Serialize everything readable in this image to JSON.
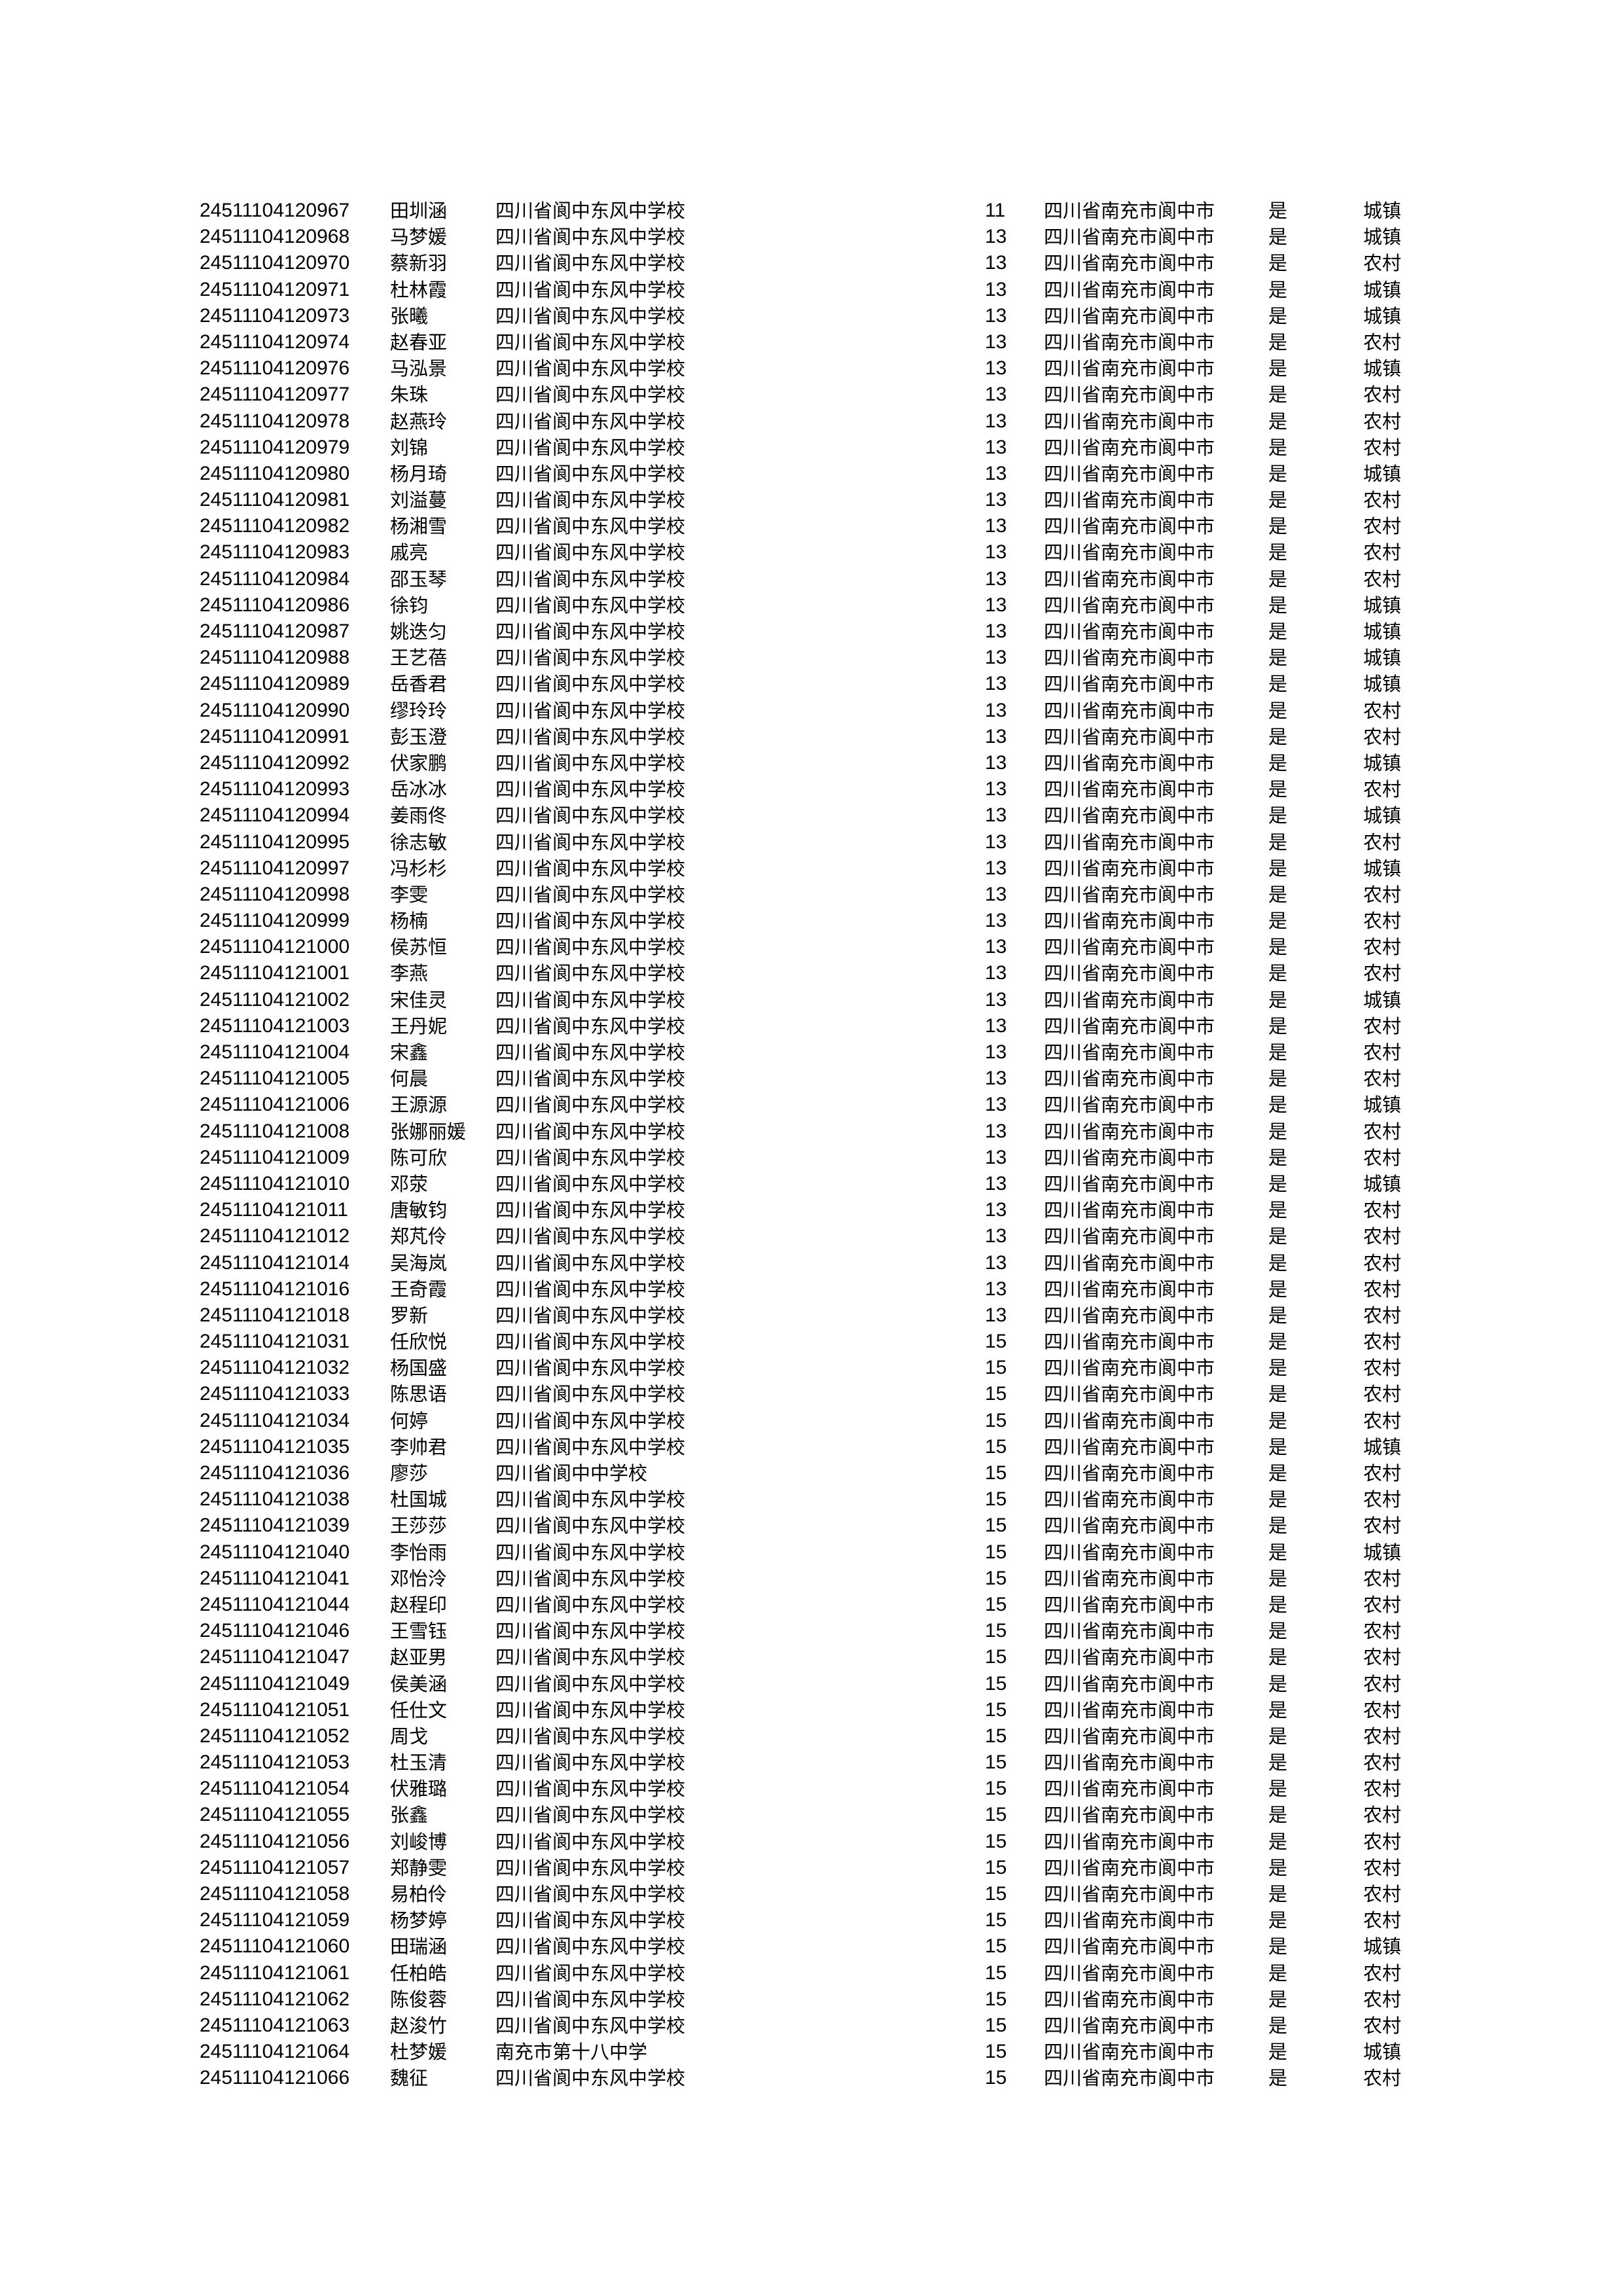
{
  "rows": [
    [
      "24511104120967",
      "田圳涵",
      "四川省阆中东风中学校",
      "11",
      "四川省南充市阆中市",
      "是",
      "城镇"
    ],
    [
      "24511104120968",
      "马梦媛",
      "四川省阆中东风中学校",
      "13",
      "四川省南充市阆中市",
      "是",
      "城镇"
    ],
    [
      "24511104120970",
      "蔡新羽",
      "四川省阆中东风中学校",
      "13",
      "四川省南充市阆中市",
      "是",
      "农村"
    ],
    [
      "24511104120971",
      "杜林霞",
      "四川省阆中东风中学校",
      "13",
      "四川省南充市阆中市",
      "是",
      "城镇"
    ],
    [
      "24511104120973",
      "张曦",
      "四川省阆中东风中学校",
      "13",
      "四川省南充市阆中市",
      "是",
      "城镇"
    ],
    [
      "24511104120974",
      "赵春亚",
      "四川省阆中东风中学校",
      "13",
      "四川省南充市阆中市",
      "是",
      "农村"
    ],
    [
      "24511104120976",
      "马泓景",
      "四川省阆中东风中学校",
      "13",
      "四川省南充市阆中市",
      "是",
      "城镇"
    ],
    [
      "24511104120977",
      "朱珠",
      "四川省阆中东风中学校",
      "13",
      "四川省南充市阆中市",
      "是",
      "农村"
    ],
    [
      "24511104120978",
      "赵燕玲",
      "四川省阆中东风中学校",
      "13",
      "四川省南充市阆中市",
      "是",
      "农村"
    ],
    [
      "24511104120979",
      "刘锦",
      "四川省阆中东风中学校",
      "13",
      "四川省南充市阆中市",
      "是",
      "农村"
    ],
    [
      "24511104120980",
      "杨月琦",
      "四川省阆中东风中学校",
      "13",
      "四川省南充市阆中市",
      "是",
      "城镇"
    ],
    [
      "24511104120981",
      "刘溢蔓",
      "四川省阆中东风中学校",
      "13",
      "四川省南充市阆中市",
      "是",
      "农村"
    ],
    [
      "24511104120982",
      "杨湘雪",
      "四川省阆中东风中学校",
      "13",
      "四川省南充市阆中市",
      "是",
      "农村"
    ],
    [
      "24511104120983",
      "戚亮",
      "四川省阆中东风中学校",
      "13",
      "四川省南充市阆中市",
      "是",
      "农村"
    ],
    [
      "24511104120984",
      "邵玉琴",
      "四川省阆中东风中学校",
      "13",
      "四川省南充市阆中市",
      "是",
      "农村"
    ],
    [
      "24511104120986",
      "徐钧",
      "四川省阆中东风中学校",
      "13",
      "四川省南充市阆中市",
      "是",
      "城镇"
    ],
    [
      "24511104120987",
      "姚迭匀",
      "四川省阆中东风中学校",
      "13",
      "四川省南充市阆中市",
      "是",
      "城镇"
    ],
    [
      "24511104120988",
      "王艺蓓",
      "四川省阆中东风中学校",
      "13",
      "四川省南充市阆中市",
      "是",
      "城镇"
    ],
    [
      "24511104120989",
      "岳香君",
      "四川省阆中东风中学校",
      "13",
      "四川省南充市阆中市",
      "是",
      "城镇"
    ],
    [
      "24511104120990",
      "缪玲玲",
      "四川省阆中东风中学校",
      "13",
      "四川省南充市阆中市",
      "是",
      "农村"
    ],
    [
      "24511104120991",
      "彭玉澄",
      "四川省阆中东风中学校",
      "13",
      "四川省南充市阆中市",
      "是",
      "农村"
    ],
    [
      "24511104120992",
      "伏家鹏",
      "四川省阆中东风中学校",
      "13",
      "四川省南充市阆中市",
      "是",
      "城镇"
    ],
    [
      "24511104120993",
      "岳冰冰",
      "四川省阆中东风中学校",
      "13",
      "四川省南充市阆中市",
      "是",
      "农村"
    ],
    [
      "24511104120994",
      "姜雨佟",
      "四川省阆中东风中学校",
      "13",
      "四川省南充市阆中市",
      "是",
      "城镇"
    ],
    [
      "24511104120995",
      "徐志敏",
      "四川省阆中东风中学校",
      "13",
      "四川省南充市阆中市",
      "是",
      "农村"
    ],
    [
      "24511104120997",
      "冯杉杉",
      "四川省阆中东风中学校",
      "13",
      "四川省南充市阆中市",
      "是",
      "城镇"
    ],
    [
      "24511104120998",
      "李雯",
      "四川省阆中东风中学校",
      "13",
      "四川省南充市阆中市",
      "是",
      "农村"
    ],
    [
      "24511104120999",
      "杨楠",
      "四川省阆中东风中学校",
      "13",
      "四川省南充市阆中市",
      "是",
      "农村"
    ],
    [
      "24511104121000",
      "侯苏恒",
      "四川省阆中东风中学校",
      "13",
      "四川省南充市阆中市",
      "是",
      "农村"
    ],
    [
      "24511104121001",
      "李燕",
      "四川省阆中东风中学校",
      "13",
      "四川省南充市阆中市",
      "是",
      "农村"
    ],
    [
      "24511104121002",
      "宋佳灵",
      "四川省阆中东风中学校",
      "13",
      "四川省南充市阆中市",
      "是",
      "城镇"
    ],
    [
      "24511104121003",
      "王丹妮",
      "四川省阆中东风中学校",
      "13",
      "四川省南充市阆中市",
      "是",
      "农村"
    ],
    [
      "24511104121004",
      "宋鑫",
      "四川省阆中东风中学校",
      "13",
      "四川省南充市阆中市",
      "是",
      "农村"
    ],
    [
      "24511104121005",
      "何晨",
      "四川省阆中东风中学校",
      "13",
      "四川省南充市阆中市",
      "是",
      "农村"
    ],
    [
      "24511104121006",
      "王源源",
      "四川省阆中东风中学校",
      "13",
      "四川省南充市阆中市",
      "是",
      "城镇"
    ],
    [
      "24511104121008",
      "张娜丽媛",
      "四川省阆中东风中学校",
      "13",
      "四川省南充市阆中市",
      "是",
      "农村"
    ],
    [
      "24511104121009",
      "陈可欣",
      "四川省阆中东风中学校",
      "13",
      "四川省南充市阆中市",
      "是",
      "农村"
    ],
    [
      "24511104121010",
      "邓荥",
      "四川省阆中东风中学校",
      "13",
      "四川省南充市阆中市",
      "是",
      "城镇"
    ],
    [
      "24511104121011",
      "唐敏钧",
      "四川省阆中东风中学校",
      "13",
      "四川省南充市阆中市",
      "是",
      "农村"
    ],
    [
      "24511104121012",
      "郑芃伶",
      "四川省阆中东风中学校",
      "13",
      "四川省南充市阆中市",
      "是",
      "农村"
    ],
    [
      "24511104121014",
      "吴海岚",
      "四川省阆中东风中学校",
      "13",
      "四川省南充市阆中市",
      "是",
      "农村"
    ],
    [
      "24511104121016",
      "王奇霞",
      "四川省阆中东风中学校",
      "13",
      "四川省南充市阆中市",
      "是",
      "农村"
    ],
    [
      "24511104121018",
      "罗新",
      "四川省阆中东风中学校",
      "13",
      "四川省南充市阆中市",
      "是",
      "农村"
    ],
    [
      "24511104121031",
      "任欣悦",
      "四川省阆中东风中学校",
      "15",
      "四川省南充市阆中市",
      "是",
      "农村"
    ],
    [
      "24511104121032",
      "杨国盛",
      "四川省阆中东风中学校",
      "15",
      "四川省南充市阆中市",
      "是",
      "农村"
    ],
    [
      "24511104121033",
      "陈思语",
      "四川省阆中东风中学校",
      "15",
      "四川省南充市阆中市",
      "是",
      "农村"
    ],
    [
      "24511104121034",
      "何婷",
      "四川省阆中东风中学校",
      "15",
      "四川省南充市阆中市",
      "是",
      "农村"
    ],
    [
      "24511104121035",
      "李帅君",
      "四川省阆中东风中学校",
      "15",
      "四川省南充市阆中市",
      "是",
      "城镇"
    ],
    [
      "24511104121036",
      "廖莎",
      "四川省阆中中学校",
      "15",
      "四川省南充市阆中市",
      "是",
      "农村"
    ],
    [
      "24511104121038",
      "杜国城",
      "四川省阆中东风中学校",
      "15",
      "四川省南充市阆中市",
      "是",
      "农村"
    ],
    [
      "24511104121039",
      "王莎莎",
      "四川省阆中东风中学校",
      "15",
      "四川省南充市阆中市",
      "是",
      "农村"
    ],
    [
      "24511104121040",
      "李怡雨",
      "四川省阆中东风中学校",
      "15",
      "四川省南充市阆中市",
      "是",
      "城镇"
    ],
    [
      "24511104121041",
      "邓怡泠",
      "四川省阆中东风中学校",
      "15",
      "四川省南充市阆中市",
      "是",
      "农村"
    ],
    [
      "24511104121044",
      "赵程印",
      "四川省阆中东风中学校",
      "15",
      "四川省南充市阆中市",
      "是",
      "农村"
    ],
    [
      "24511104121046",
      "王雪钰",
      "四川省阆中东风中学校",
      "15",
      "四川省南充市阆中市",
      "是",
      "农村"
    ],
    [
      "24511104121047",
      "赵亚男",
      "四川省阆中东风中学校",
      "15",
      "四川省南充市阆中市",
      "是",
      "农村"
    ],
    [
      "24511104121049",
      "侯美涵",
      "四川省阆中东风中学校",
      "15",
      "四川省南充市阆中市",
      "是",
      "农村"
    ],
    [
      "24511104121051",
      "任仕文",
      "四川省阆中东风中学校",
      "15",
      "四川省南充市阆中市",
      "是",
      "农村"
    ],
    [
      "24511104121052",
      "周戈",
      "四川省阆中东风中学校",
      "15",
      "四川省南充市阆中市",
      "是",
      "农村"
    ],
    [
      "24511104121053",
      "杜玉清",
      "四川省阆中东风中学校",
      "15",
      "四川省南充市阆中市",
      "是",
      "农村"
    ],
    [
      "24511104121054",
      "伏雅璐",
      "四川省阆中东风中学校",
      "15",
      "四川省南充市阆中市",
      "是",
      "农村"
    ],
    [
      "24511104121055",
      "张鑫",
      "四川省阆中东风中学校",
      "15",
      "四川省南充市阆中市",
      "是",
      "农村"
    ],
    [
      "24511104121056",
      "刘峻博",
      "四川省阆中东风中学校",
      "15",
      "四川省南充市阆中市",
      "是",
      "农村"
    ],
    [
      "24511104121057",
      "郑静雯",
      "四川省阆中东风中学校",
      "15",
      "四川省南充市阆中市",
      "是",
      "农村"
    ],
    [
      "24511104121058",
      "易柏伶",
      "四川省阆中东风中学校",
      "15",
      "四川省南充市阆中市",
      "是",
      "农村"
    ],
    [
      "24511104121059",
      "杨梦婷",
      "四川省阆中东风中学校",
      "15",
      "四川省南充市阆中市",
      "是",
      "农村"
    ],
    [
      "24511104121060",
      "田瑞涵",
      "四川省阆中东风中学校",
      "15",
      "四川省南充市阆中市",
      "是",
      "城镇"
    ],
    [
      "24511104121061",
      "任柏皓",
      "四川省阆中东风中学校",
      "15",
      "四川省南充市阆中市",
      "是",
      "农村"
    ],
    [
      "24511104121062",
      "陈俊蓉",
      "四川省阆中东风中学校",
      "15",
      "四川省南充市阆中市",
      "是",
      "农村"
    ],
    [
      "24511104121063",
      "赵浚竹",
      "四川省阆中东风中学校",
      "15",
      "四川省南充市阆中市",
      "是",
      "农村"
    ],
    [
      "24511104121064",
      "杜梦媛",
      "南充市第十八中学",
      "15",
      "四川省南充市阆中市",
      "是",
      "城镇"
    ],
    [
      "24511104121066",
      "魏征",
      "四川省阆中东风中学校",
      "15",
      "四川省南充市阆中市",
      "是",
      "农村"
    ]
  ]
}
